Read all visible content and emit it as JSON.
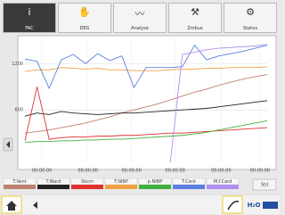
{
  "tabs": [
    "FAC",
    "DEG",
    "Analyse",
    "Zmbus",
    "Status"
  ],
  "chart_data": {
    "type": "line",
    "x": [
      0,
      5,
      10,
      15,
      20,
      25,
      30,
      35,
      40,
      45,
      50,
      55,
      60,
      65,
      70,
      75,
      80,
      85,
      90,
      95,
      100
    ],
    "xlim": [
      0,
      100
    ],
    "ylim": [
      -80,
      1540
    ],
    "yticks": [
      600,
      1200
    ],
    "xticks": [
      {
        "value": 7,
        "label": "00:00:00"
      },
      {
        "value": 26,
        "label": "00:00:00"
      },
      {
        "value": 44,
        "label": "00:00:00"
      },
      {
        "value": 62,
        "label": "00:00:00"
      },
      {
        "value": 81,
        "label": "00:00:00"
      },
      {
        "value": 97,
        "label": "00:00:00"
      }
    ],
    "grid": true,
    "series": [
      {
        "name": "T.Vent",
        "color": "#c08070",
        "values": [
          300,
          320,
          340,
          370,
          400,
          430,
          470,
          510,
          560,
          600,
          640,
          680,
          730,
          780,
          830,
          870,
          920,
          960,
          1000,
          1030,
          1060
        ]
      },
      {
        "name": "T.Ward",
        "color": "#222222",
        "values": [
          520,
          560,
          540,
          580,
          560,
          550,
          540,
          550,
          560,
          560,
          570,
          580,
          590,
          600,
          610,
          620,
          640,
          660,
          680,
          700,
          720
        ]
      },
      {
        "name": "Sbcm",
        "color": "#e03030",
        "values": [
          200,
          900,
          220,
          240,
          250,
          250,
          260,
          260,
          270,
          270,
          280,
          290,
          300,
          300,
          310,
          320,
          330,
          340,
          350,
          360,
          370
        ]
      },
      {
        "name": "T.NIBP",
        "color": "#f0a040",
        "values": [
          1100,
          1120,
          1120,
          1150,
          1140,
          1130,
          1140,
          1120,
          1120,
          1110,
          1110,
          1110,
          1120,
          1130,
          1130,
          1140,
          1140,
          1150,
          1150,
          1150,
          1160
        ]
      },
      {
        "name": "p.NIBP",
        "color": "#40b040",
        "values": [
          180,
          190,
          190,
          200,
          200,
          210,
          210,
          220,
          220,
          230,
          240,
          250,
          260,
          270,
          290,
          310,
          340,
          370,
          400,
          430,
          460
        ]
      },
      {
        "name": "T.Cent",
        "color": "#5b7fe0",
        "values": [
          1260,
          1230,
          880,
          1250,
          1320,
          1200,
          1330,
          1240,
          1300,
          890,
          1150,
          1150,
          1150,
          1160,
          1440,
          1250,
          1300,
          1330,
          1360,
          1400,
          1440
        ]
      },
      {
        "name": "M.f.Card",
        "color": "#b090f0",
        "values": [
          null,
          null,
          null,
          null,
          null,
          null,
          null,
          null,
          null,
          null,
          null,
          null,
          -80,
          1320,
          1350,
          1380,
          1400,
          1410,
          1420,
          1430,
          1450
        ]
      }
    ]
  },
  "side_button": "Std",
  "status": "H₂O"
}
